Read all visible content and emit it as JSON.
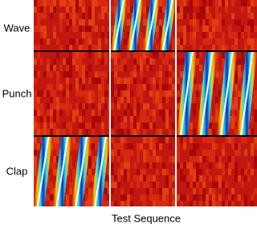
{
  "row_labels": [
    "Wave",
    "Punch",
    "Clap"
  ],
  "x_label": "Test Sequence"
}
